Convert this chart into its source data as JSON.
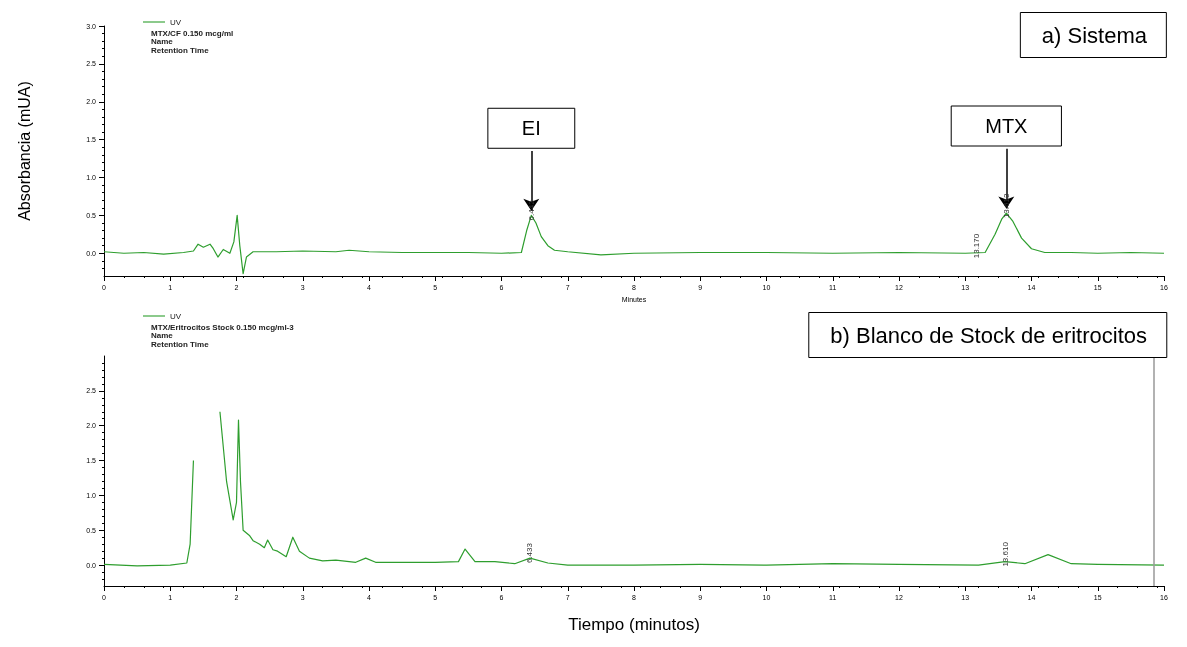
{
  "chart_data": [
    {
      "type": "line",
      "title": "a) Sistema",
      "xlabel": "Minutes",
      "ylabel": "Absorbancia (mUA)",
      "legend": "top left",
      "grid": false,
      "marker": "none",
      "line_style": "solid",
      "xlim": [
        0,
        16
      ],
      "xticks": [
        0,
        1,
        2,
        3,
        4,
        5,
        6,
        7,
        8,
        9,
        10,
        11,
        12,
        13,
        14,
        15,
        16
      ],
      "ylim": [
        -0.3,
        3.0
      ],
      "yticks": [
        {
          "value": 0,
          "label": "0.0"
        },
        {
          "value": 0.5,
          "label": "0.5"
        },
        {
          "value": 1,
          "label": "1.0"
        },
        {
          "value": 1.5,
          "label": "1.5"
        },
        {
          "value": 2,
          "label": "2.0"
        },
        {
          "value": 2.5,
          "label": "2.5"
        },
        {
          "value": 3,
          "label": "3.0"
        }
      ],
      "series": [
        {
          "name": "UV",
          "color": "#2e9e2e",
          "x": [
            0,
            0.3,
            0.6,
            0.9,
            1.2,
            1.35,
            1.42,
            1.5,
            1.6,
            1.65,
            1.72,
            1.8,
            1.9,
            1.96,
            2.01,
            2.05,
            2.1,
            2.15,
            2.25,
            2.6,
            3.0,
            3.5,
            3.7,
            4.0,
            4.5,
            5.0,
            5.5,
            6.0,
            6.3,
            6.38,
            6.45,
            6.52,
            6.6,
            6.7,
            6.8,
            7.0,
            7.5,
            8.0,
            9.0,
            10.0,
            11.0,
            12.0,
            13.0,
            13.3,
            13.45,
            13.55,
            13.62,
            13.72,
            13.85,
            14.0,
            14.2,
            14.6,
            15.0,
            15.5,
            16.0
          ],
          "values": [
            0.02,
            0.0,
            0.01,
            -0.01,
            0.01,
            0.03,
            0.12,
            0.08,
            0.12,
            0.06,
            -0.05,
            0.05,
            0.0,
            0.15,
            0.5,
            0.1,
            -0.27,
            -0.05,
            0.02,
            0.02,
            0.03,
            0.02,
            0.04,
            0.02,
            0.01,
            0.01,
            0.01,
            0.0,
            0.01,
            0.3,
            0.5,
            0.4,
            0.22,
            0.1,
            0.04,
            0.02,
            -0.02,
            0.0,
            0.01,
            0.01,
            0.0,
            0.01,
            0.0,
            0.01,
            0.25,
            0.45,
            0.53,
            0.42,
            0.2,
            0.06,
            0.01,
            0.01,
            0.0,
            0.01,
            0.0
          ]
        }
      ],
      "annotations": [
        "MTX/CF 0.150 mcg/ml",
        "Name",
        "Retention Time",
        {
          "text": "6.442",
          "x": 6.45,
          "y": 0.5
        },
        {
          "text": "13.170",
          "x": 13.17,
          "y": 0.0
        },
        {
          "text": "13.613",
          "x": 13.62,
          "y": 0.53
        },
        {
          "text": "EI",
          "x": 6.45,
          "y": 0.5
        },
        {
          "text": "MTX",
          "x": 13.62,
          "y": 0.53
        }
      ]
    },
    {
      "type": "line",
      "title": "b) Blanco de Stock de eritrocitos",
      "xlabel": "Tiempo (minutos)",
      "legend": "top left",
      "grid": false,
      "marker": "none",
      "line_style": "solid",
      "xlim": [
        0,
        16
      ],
      "xticks": [
        0,
        1,
        2,
        3,
        4,
        5,
        6,
        7,
        8,
        9,
        10,
        11,
        12,
        13,
        14,
        15,
        16
      ],
      "ylim": [
        -0.3,
        3.0
      ],
      "yticks": [
        {
          "value": 0,
          "label": "0.0"
        },
        {
          "value": 0.5,
          "label": "0.5"
        },
        {
          "value": 1,
          "label": "1.0"
        },
        {
          "value": 1.5,
          "label": "1.5"
        },
        {
          "value": 2,
          "label": "2.0"
        },
        {
          "value": 2.5,
          "label": "2.5"
        }
      ],
      "ref_lines": [
        {
          "axis": "x",
          "value": 15.85,
          "color": "#999999"
        }
      ],
      "series": [
        {
          "name": "UV",
          "color": "#2e9e2e",
          "x": [
            0,
            0.5,
            1.0,
            1.25,
            1.3,
            1.35,
            1.38,
            1.7,
            1.75,
            1.85,
            1.95,
            2.0,
            2.03,
            2.06,
            2.1,
            2.2,
            2.25,
            2.35,
            2.42,
            2.47,
            2.55,
            2.62,
            2.75,
            2.85,
            2.95,
            3.1,
            3.3,
            3.5,
            3.8,
            3.95,
            4.1,
            5.0,
            5.35,
            5.45,
            5.6,
            5.9,
            6.2,
            6.43,
            6.7,
            7.0,
            8.0,
            9.0,
            10.0,
            11.0,
            12.0,
            13.2,
            13.6,
            13.9,
            14.25,
            14.6,
            15.0,
            16.0
          ],
          "values": [
            0.01,
            -0.01,
            0.0,
            0.03,
            0.3,
            1.5,
            null,
            null,
            2.2,
            1.2,
            0.65,
            0.9,
            2.08,
            1.2,
            0.5,
            0.42,
            0.35,
            0.3,
            0.25,
            0.36,
            0.22,
            0.2,
            0.12,
            0.4,
            0.2,
            0.1,
            0.06,
            0.07,
            0.04,
            0.1,
            0.04,
            0.04,
            0.05,
            0.23,
            0.05,
            0.05,
            0.02,
            0.1,
            0.03,
            0.0,
            0.0,
            0.01,
            0.0,
            0.02,
            0.01,
            0.0,
            0.05,
            0.02,
            0.15,
            0.02,
            0.01,
            0.0
          ]
        }
      ],
      "annotations": [
        "MTX/Eritrocitos Stock 0.150 mcg/ml-3",
        "Name",
        "Retention Time",
        {
          "text": "6.433",
          "x": 6.43,
          "y": 0.1
        },
        {
          "text": "13.610",
          "x": 13.6,
          "y": 0.05
        }
      ]
    }
  ]
}
